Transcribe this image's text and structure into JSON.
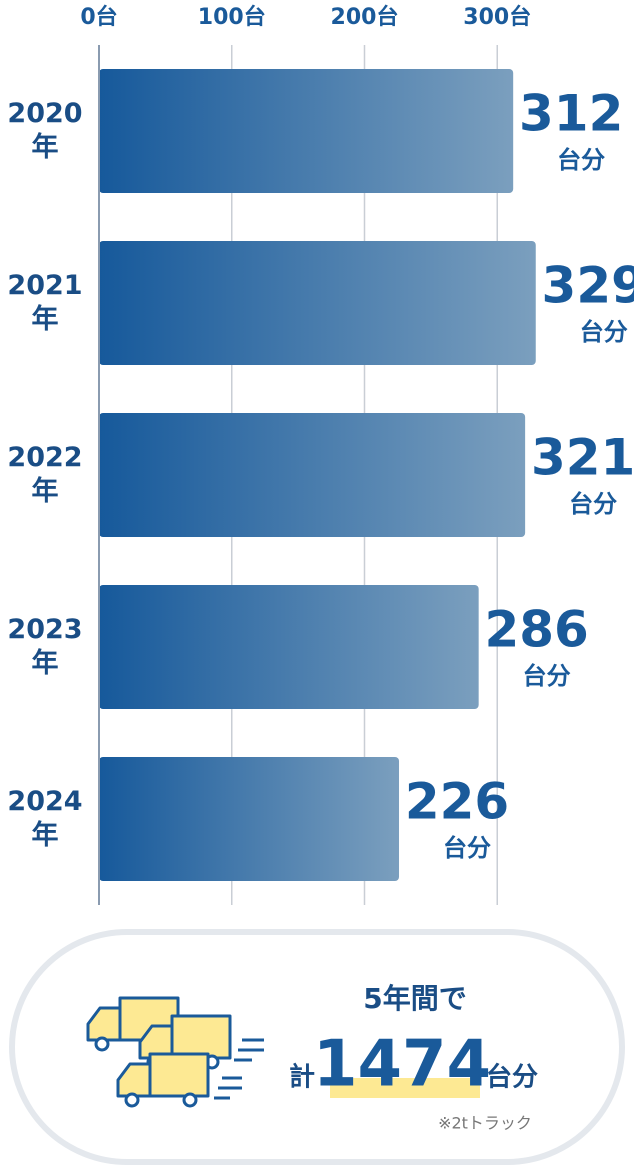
{
  "chart_data": {
    "type": "bar",
    "orientation": "horizontal",
    "categories": [
      "2020年",
      "2021年",
      "2022年",
      "2023年",
      "2024年"
    ],
    "values": [
      312,
      329,
      321,
      286,
      226
    ],
    "value_unit": "台分",
    "color": [
      "#16599b",
      "#7b9fbe"
    ],
    "xlim": [
      0,
      400
    ],
    "xticks": [
      {
        "value": 0,
        "label": "0台"
      },
      {
        "value": 100,
        "label": "100台"
      },
      {
        "value": 200,
        "label": "200台"
      },
      {
        "value": 300,
        "label": "300台"
      }
    ],
    "grid": true
  },
  "summary": {
    "period": "5年間で",
    "prefix": "計",
    "total": "1474",
    "unit": "台分",
    "note": "※2tトラック"
  }
}
